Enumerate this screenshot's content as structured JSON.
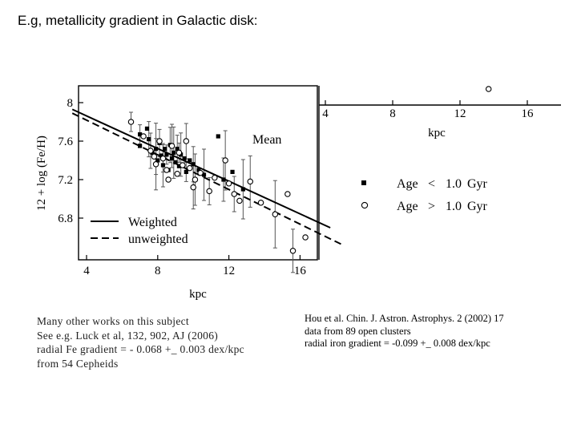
{
  "slide": {
    "title": "E.g, metallicity gradient in Galactic disk:",
    "left_notes": [
      "Many other works on this subject",
      "See e.g. Luck et al, 132, 902, AJ (2006)",
      "radial Fe gradient = - 0.068 +_ 0.003 dex/kpc",
      "from 54 Cepheids"
    ],
    "right_notes": [
      "Hou et al. Chin. J. Astron. Astrophys. 2 (2002) 17",
      "data from 89 open clusters",
      "radial iron gradient = -0.099 +_ 0.008 dex/kpc"
    ]
  },
  "chart_data": [
    {
      "type": "scatter",
      "xlabel": "kpc",
      "ylabel": "12 + log (Fe/H)",
      "xlim": [
        3,
        18.5
      ],
      "ylim": [
        6.4,
        8.1
      ],
      "xticks": [
        "4",
        "8",
        "12",
        "16"
      ],
      "yticks": [
        "8",
        "7.6",
        "7.2",
        "6.8"
      ],
      "annotations": [
        "Mean"
      ],
      "legend": {
        "placement": "bottom-left",
        "entries": [
          {
            "label": "Weighted",
            "style": "solid"
          },
          {
            "label": "unweighted",
            "style": "dashed"
          }
        ]
      },
      "lines": [
        {
          "name": "Weighted",
          "style": "solid",
          "x": [
            3.2,
            17.7
          ],
          "y": [
            7.93,
            6.7
          ]
        },
        {
          "name": "unweighted",
          "style": "dashed",
          "x": [
            3.2,
            18.3
          ],
          "y": [
            7.89,
            6.53
          ]
        }
      ],
      "series": [
        {
          "name": "Age < 1.0 Gyr",
          "marker": "filled-square",
          "points": [
            [
              7.0,
              7.67
            ],
            [
              7.0,
              7.55
            ],
            [
              7.5,
              7.62
            ],
            [
              7.7,
              7.48
            ],
            [
              7.9,
              7.52
            ],
            [
              8.0,
              7.4
            ],
            [
              8.1,
              7.58
            ],
            [
              8.2,
              7.45
            ],
            [
              8.3,
              7.35
            ],
            [
              8.4,
              7.52
            ],
            [
              8.5,
              7.46
            ],
            [
              8.6,
              7.3
            ],
            [
              8.7,
              7.56
            ],
            [
              8.8,
              7.42
            ],
            [
              8.9,
              7.48
            ],
            [
              9.0,
              7.38
            ],
            [
              9.1,
              7.52
            ],
            [
              9.2,
              7.34
            ],
            [
              9.3,
              7.46
            ],
            [
              9.5,
              7.42
            ],
            [
              9.6,
              7.28
            ],
            [
              9.8,
              7.4
            ],
            [
              10.0,
              7.36
            ],
            [
              10.3,
              7.3
            ],
            [
              10.6,
              7.25
            ],
            [
              11.4,
              7.65
            ],
            [
              11.7,
              7.2
            ],
            [
              12.2,
              7.28
            ],
            [
              12.8,
              7.1
            ],
            [
              7.4,
              7.73
            ]
          ]
        },
        {
          "name": "Age > 1.0 Gyr",
          "marker": "open-circle",
          "points": [
            [
              6.5,
              7.8
            ],
            [
              7.2,
              7.65
            ],
            [
              7.6,
              7.5
            ],
            [
              7.8,
              7.44
            ],
            [
              7.9,
              7.36
            ],
            [
              8.1,
              7.6
            ],
            [
              8.3,
              7.42
            ],
            [
              8.5,
              7.3
            ],
            [
              8.8,
              7.55
            ],
            [
              9.1,
              7.26
            ],
            [
              9.2,
              7.48
            ],
            [
              9.4,
              7.35
            ],
            [
              9.6,
              7.6
            ],
            [
              9.8,
              7.32
            ],
            [
              10.1,
              7.2
            ],
            [
              10.4,
              7.27
            ],
            [
              10.9,
              7.08
            ],
            [
              11.2,
              7.22
            ],
            [
              11.8,
              7.4
            ],
            [
              12.0,
              7.16
            ],
            [
              12.3,
              7.05
            ],
            [
              12.6,
              6.98
            ],
            [
              13.2,
              7.18
            ],
            [
              13.8,
              6.96
            ],
            [
              14.6,
              6.84
            ],
            [
              15.3,
              7.05
            ],
            [
              15.6,
              6.46
            ],
            [
              16.3,
              6.6
            ],
            [
              10.0,
              7.12
            ],
            [
              8.6,
              7.2
            ]
          ]
        }
      ]
    },
    {
      "type": "scatter",
      "xlabel": "kpc",
      "xticks": [
        "4",
        "8",
        "12",
        "16"
      ],
      "xlim": [
        3.5,
        17
      ],
      "legend": {
        "placement": "right",
        "entries": [
          {
            "marker": "filled-square",
            "label": "Age",
            "comparator": "<",
            "value": "1.0",
            "unit": "Gyr"
          },
          {
            "marker": "open-circle",
            "label": "Age",
            "comparator": ">",
            "value": "1.0",
            "unit": "Gyr"
          }
        ]
      },
      "series": [
        {
          "name": "Age > 1.0 Gyr",
          "marker": "open-circle",
          "points": [
            [
              13.7,
              null
            ]
          ]
        }
      ]
    }
  ]
}
